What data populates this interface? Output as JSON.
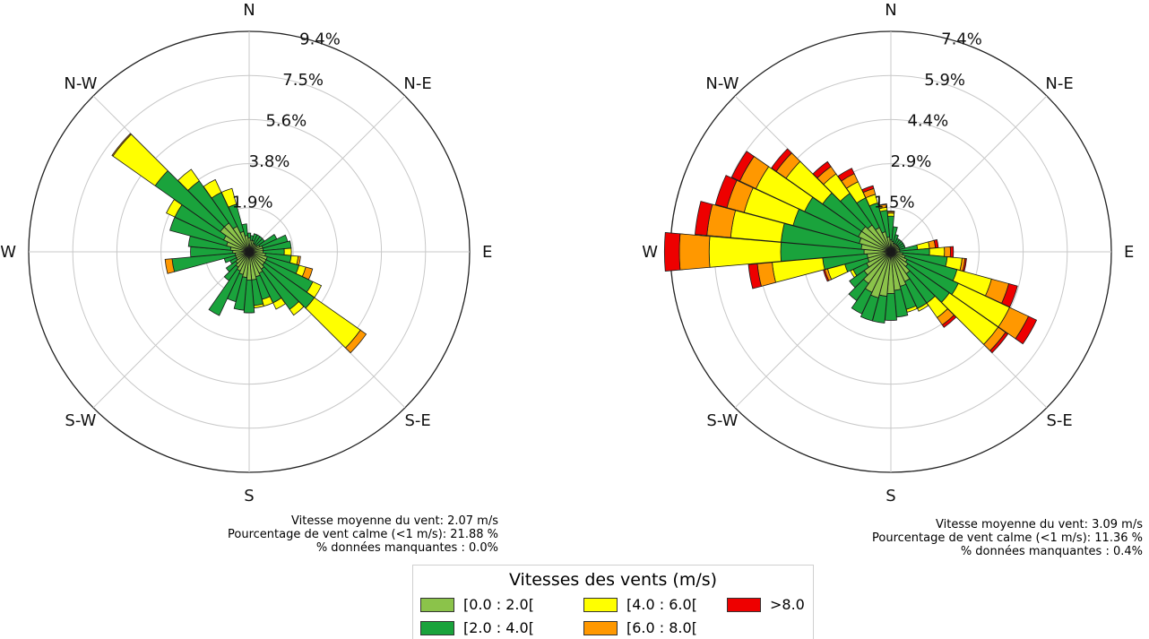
{
  "chart_data": [
    {
      "type": "windrose",
      "directions": [
        "N",
        "N-E",
        "E",
        "S-E",
        "S",
        "S-W",
        "W",
        "N-W"
      ],
      "rings_pct": [
        "1.9%",
        "3.8%",
        "5.6%",
        "7.5%",
        "9.4%"
      ],
      "rmax": 9.4,
      "sector_angles": [
        0,
        10,
        20,
        30,
        40,
        50,
        60,
        70,
        80,
        90,
        100,
        110,
        120,
        130,
        140,
        150,
        160,
        170,
        180,
        190,
        200,
        210,
        220,
        230,
        240,
        250,
        260,
        270,
        280,
        290,
        300,
        310,
        320,
        330,
        340,
        350
      ],
      "series": [
        {
          "bin": "[0.0 : 2.0[",
          "values": [
            0.6,
            0.5,
            0.5,
            0.4,
            0.4,
            0.4,
            0.5,
            0.6,
            0.6,
            0.6,
            0.7,
            0.8,
            0.8,
            0.8,
            0.9,
            1.0,
            1.1,
            1.2,
            1.2,
            1.1,
            1.0,
            0.9,
            0.8,
            0.7,
            0.6,
            0.6,
            0.6,
            0.7,
            0.8,
            1.0,
            1.2,
            1.5,
            1.5,
            1.2,
            0.9,
            0.7
          ]
        },
        {
          "bin": "[2.0 : 4.0[",
          "values": [
            0.2,
            0.2,
            0.3,
            0.4,
            0.4,
            0.4,
            0.8,
            1.1,
            1.2,
            0.9,
            1.1,
            1.4,
            2.2,
            2.6,
            2.1,
            1.4,
            1.0,
            1.1,
            1.4,
            1.4,
            1.2,
            2.1,
            0.7,
            0.5,
            0.3,
            0.5,
            2.7,
            1.8,
            1.8,
            2.5,
            2.3,
            3.4,
            2.2,
            1.6,
            1.2,
            0.5
          ]
        },
        {
          "bin": "[4.0 : 6.0[",
          "values": [
            0.0,
            0.0,
            0.0,
            0.0,
            0.0,
            0.0,
            0.0,
            0.0,
            0.0,
            0.3,
            0.3,
            0.3,
            0.4,
            2.4,
            0.3,
            0.3,
            0.3,
            0.1,
            0.0,
            0.0,
            0.0,
            0.0,
            0.0,
            0.0,
            0.0,
            0.0,
            0.0,
            0.0,
            0.0,
            0.0,
            0.4,
            2.2,
            0.6,
            0.6,
            0.7,
            0.0
          ]
        },
        {
          "bin": "[6.0 : 8.0[",
          "values": [
            0.0,
            0.0,
            0.0,
            0.0,
            0.0,
            0.0,
            0.0,
            0.0,
            0.0,
            0.0,
            0.1,
            0.3,
            0.0,
            0.3,
            0.0,
            0.0,
            0.0,
            0.0,
            0.0,
            0.0,
            0.0,
            0.0,
            0.0,
            0.0,
            0.0,
            0.0,
            0.3,
            0.0,
            0.0,
            0.0,
            0.0,
            0.05,
            0.0,
            0.0,
            0.0,
            0.0
          ]
        },
        {
          "bin": ">8.0",
          "values": [
            0,
            0,
            0,
            0,
            0,
            0,
            0,
            0,
            0,
            0,
            0,
            0,
            0,
            0,
            0,
            0,
            0,
            0,
            0,
            0,
            0,
            0,
            0,
            0,
            0,
            0,
            0,
            0,
            0,
            0,
            0,
            0,
            0,
            0,
            0,
            0
          ]
        }
      ],
      "stats": {
        "mean_speed": "Vitesse moyenne du vent: 2.07 m/s",
        "calm": "Pourcentage de vent calme (<1 m/s): 21.88 %",
        "missing": "% données manquantes : 0.0%"
      }
    },
    {
      "type": "windrose",
      "directions": [
        "N",
        "N-E",
        "E",
        "S-E",
        "S",
        "S-W",
        "W",
        "N-W"
      ],
      "rings_pct": [
        "1.5%",
        "2.9%",
        "4.4%",
        "5.9%",
        "7.4%"
      ],
      "rmax": 7.4,
      "sector_angles": [
        0,
        10,
        20,
        30,
        40,
        50,
        60,
        70,
        80,
        90,
        100,
        110,
        120,
        130,
        140,
        150,
        160,
        170,
        180,
        190,
        200,
        210,
        220,
        230,
        240,
        250,
        260,
        270,
        280,
        290,
        300,
        310,
        320,
        330,
        340,
        350
      ],
      "series": [
        {
          "bin": "[0.0 : 2.0[",
          "values": [
            0.4,
            0.35,
            0.3,
            0.3,
            0.3,
            0.3,
            0.3,
            0.3,
            0.3,
            0.3,
            0.4,
            0.5,
            0.6,
            0.7,
            0.9,
            1.1,
            1.2,
            1.3,
            1.4,
            1.5,
            1.6,
            1.5,
            1.3,
            1.1,
            0.9,
            0.8,
            0.8,
            0.9,
            1.0,
            1.1,
            1.2,
            1.2,
            1.1,
            0.9,
            0.7,
            0.5
          ]
        },
        {
          "bin": "[2.0 : 4.0[",
          "values": [
            0.8,
            0.5,
            0.3,
            0.2,
            0.2,
            0.2,
            0.2,
            0.2,
            0.6,
            1.0,
            1.5,
            1.8,
            1.9,
            1.7,
            1.2,
            1.0,
            0.8,
            0.9,
            0.9,
            0.9,
            0.8,
            0.8,
            0.7,
            0.6,
            0.5,
            0.8,
            1.5,
            2.8,
            2.7,
            2.3,
            2.0,
            1.6,
            1.3,
            1.1,
            1.0,
            0.9
          ]
        },
        {
          "bin": "[4.0 : 6.0[",
          "values": [
            0.1,
            0.0,
            0.0,
            0.0,
            0.0,
            0.0,
            0.0,
            0.0,
            0.4,
            0.5,
            0.5,
            1.2,
            1.9,
            2.0,
            0.6,
            0.1,
            0.1,
            0.0,
            0.0,
            0.0,
            0.0,
            0.0,
            0.0,
            0.0,
            0.1,
            0.6,
            1.7,
            2.4,
            1.7,
            1.7,
            1.8,
            1.5,
            0.8,
            0.6,
            0.3,
            0.1
          ]
        },
        {
          "bin": "[6.0 : 8.0[",
          "values": [
            0.05,
            0.0,
            0.0,
            0.0,
            0.0,
            0.0,
            0.0,
            0.0,
            0.2,
            0.2,
            0.1,
            0.6,
            0.7,
            0.3,
            0.3,
            0.0,
            0.0,
            0.0,
            0.0,
            0.0,
            0.0,
            0.0,
            0.0,
            0.0,
            0.0,
            0.1,
            0.5,
            1.0,
            0.8,
            0.6,
            0.6,
            0.4,
            0.3,
            0.3,
            0.2,
            0.1
          ]
        },
        {
          "bin": ">8.0",
          "values": [
            0.02,
            0.0,
            0.0,
            0.0,
            0.0,
            0.0,
            0.0,
            0.0,
            0.1,
            0.1,
            0.05,
            0.3,
            0.3,
            0.1,
            0.1,
            0.0,
            0.0,
            0.0,
            0.0,
            0.0,
            0.0,
            0.0,
            0.0,
            0.0,
            0.0,
            0.05,
            0.3,
            0.5,
            0.4,
            0.4,
            0.3,
            0.2,
            0.2,
            0.2,
            0.1,
            0.02
          ]
        }
      ],
      "stats": {
        "mean_speed": "Vitesse moyenne du vent: 3.09 m/s",
        "calm": "Pourcentage de vent calme (<1 m/s): 11.36 %",
        "missing": "% données manquantes : 0.4%"
      }
    }
  ],
  "colors": {
    "bin0": "#8bc34a",
    "bin1": "#1aa33c",
    "bin2": "#ffff00",
    "bin3": "#ff9800",
    "bin4": "#ee0000"
  },
  "legend": {
    "title": "Vitesses des vents (m/s)",
    "items": [
      {
        "label": "[0.0 : 2.0[",
        "color": "#8bc34a"
      },
      {
        "label": "[2.0 : 4.0[",
        "color": "#1aa33c"
      },
      {
        "label": "[4.0 : 6.0[",
        "color": "#ffff00"
      },
      {
        "label": "[6.0 : 8.0[",
        "color": "#ff9800"
      },
      {
        "label": ">8.0",
        "color": "#ee0000"
      }
    ]
  }
}
